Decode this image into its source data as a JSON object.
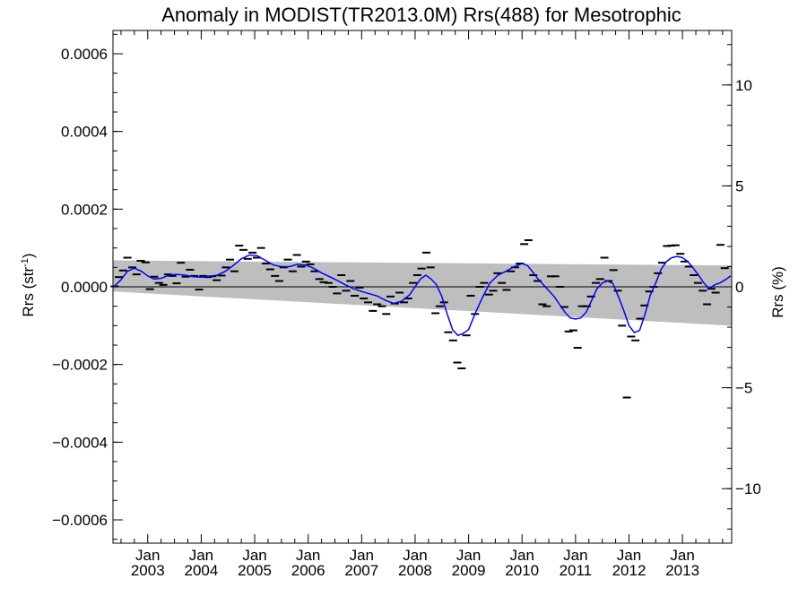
{
  "chart_data": {
    "type": "scatter",
    "title": "Anomaly in MODIST(TR2013.0M) Rrs(488) for Mesotrophic",
    "ylabel_left": "Rrs (str",
    "ylabel_left_sup": "-1",
    "ylabel_left_close": ")",
    "ylabel_right": "Rrs (%)",
    "ylim": [
      -0.00066,
      0.00066
    ],
    "ylim_right": [
      -12.7,
      12.7
    ],
    "xlim": [
      2002.35,
      2013.92
    ],
    "grid": false,
    "legend": "none",
    "y_ticks": [
      {
        "value": 0.0006,
        "label": "0.0006"
      },
      {
        "value": 0.0004,
        "label": "0.0004"
      },
      {
        "value": 0.0002,
        "label": "0.0002"
      },
      {
        "value": 0.0,
        "label": "0.0000"
      },
      {
        "value": -0.0002,
        "label": "−0.0002"
      },
      {
        "value": -0.0004,
        "label": "−0.0004"
      },
      {
        "value": -0.0006,
        "label": "−0.0006"
      }
    ],
    "y_ticks_right": [
      {
        "value": 10,
        "label": "10"
      },
      {
        "value": 5,
        "label": "5"
      },
      {
        "value": 0,
        "label": "0"
      },
      {
        "value": -5,
        "label": "−5"
      },
      {
        "value": -10,
        "label": "−10"
      }
    ],
    "x_ticks": [
      {
        "value": 2003.0,
        "label1": "Jan",
        "label2": "2003"
      },
      {
        "value": 2004.0,
        "label1": "Jan",
        "label2": "2004"
      },
      {
        "value": 2005.0,
        "label1": "Jan",
        "label2": "2005"
      },
      {
        "value": 2006.0,
        "label1": "Jan",
        "label2": "2006"
      },
      {
        "value": 2007.0,
        "label1": "Jan",
        "label2": "2007"
      },
      {
        "value": 2008.0,
        "label1": "Jan",
        "label2": "2008"
      },
      {
        "value": 2009.0,
        "label1": "Jan",
        "label2": "2009"
      },
      {
        "value": 2010.0,
        "label1": "Jan",
        "label2": "2010"
      },
      {
        "value": 2011.0,
        "label1": "Jan",
        "label2": "2011"
      },
      {
        "value": 2012.0,
        "label1": "Jan",
        "label2": "2012"
      },
      {
        "value": 2013.0,
        "label1": "Jan",
        "label2": "2013"
      }
    ],
    "band": {
      "x": [
        2002.35,
        2013.92
      ],
      "upper": [
        6.8e-05,
        5.5e-05
      ],
      "lower": [
        -1.2e-05,
        -0.0001
      ]
    },
    "points": [
      [
        2002.38,
        1e-06
      ],
      [
        2002.46,
        2.5e-05
      ],
      [
        2002.54,
        4.2e-05
      ],
      [
        2002.62,
        7.5e-05
      ],
      [
        2002.71,
        5e-05
      ],
      [
        2002.79,
        3.2e-05
      ],
      [
        2002.87,
        6.7e-05
      ],
      [
        2002.96,
        6.3e-05
      ],
      [
        2003.04,
        -6e-06
      ],
      [
        2003.12,
        2.6e-05
      ],
      [
        2003.21,
        1e-05
      ],
      [
        2003.29,
        5e-06
      ],
      [
        2003.38,
        3.2e-05
      ],
      [
        2003.46,
        2.8e-05
      ],
      [
        2003.54,
        9e-06
      ],
      [
        2003.62,
        6.2e-05
      ],
      [
        2003.71,
        2.6e-05
      ],
      [
        2003.79,
        4.4e-05
      ],
      [
        2003.87,
        2.8e-05
      ],
      [
        2003.96,
        -7e-06
      ],
      [
        2004.04,
        2.8e-05
      ],
      [
        2004.12,
        2.5e-05
      ],
      [
        2004.21,
        2.7e-05
      ],
      [
        2004.29,
        1.7e-05
      ],
      [
        2004.38,
        2.9e-05
      ],
      [
        2004.46,
        5e-05
      ],
      [
        2004.54,
        7e-05
      ],
      [
        2004.62,
        4e-05
      ],
      [
        2004.71,
        0.000106
      ],
      [
        2004.79,
        9.5e-05
      ],
      [
        2004.87,
        7.2e-05
      ],
      [
        2004.96,
        8.8e-05
      ],
      [
        2005.04,
        7.5e-05
      ],
      [
        2005.12,
        0.0001
      ],
      [
        2005.21,
        6e-05
      ],
      [
        2005.29,
        4.5e-05
      ],
      [
        2005.38,
        2.8e-05
      ],
      [
        2005.46,
        1.5e-05
      ],
      [
        2005.54,
        5e-05
      ],
      [
        2005.62,
        7e-05
      ],
      [
        2005.71,
        4e-05
      ],
      [
        2005.79,
        8.2e-05
      ],
      [
        2005.87,
        5.2e-05
      ],
      [
        2005.96,
        6.5e-05
      ],
      [
        2006.04,
        5.8e-05
      ],
      [
        2006.12,
        4e-05
      ],
      [
        2006.21,
        2e-05
      ],
      [
        2006.29,
        1.2e-05
      ],
      [
        2006.38,
        1e-05
      ],
      [
        2006.46,
        0.0
      ],
      [
        2006.54,
        -1.7e-05
      ],
      [
        2006.62,
        3e-05
      ],
      [
        2006.71,
        -1e-05
      ],
      [
        2006.79,
        1.5e-05
      ],
      [
        2006.87,
        -2.3e-05
      ],
      [
        2006.96,
        -2e-06
      ],
      [
        2007.04,
        -3e-05
      ],
      [
        2007.12,
        -4e-05
      ],
      [
        2007.21,
        -6.2e-05
      ],
      [
        2007.29,
        -4.5e-05
      ],
      [
        2007.38,
        -5e-05
      ],
      [
        2007.46,
        -7e-05
      ],
      [
        2007.54,
        -2.5e-05
      ],
      [
        2007.62,
        -4.3e-05
      ],
      [
        2007.71,
        -1.5e-05
      ],
      [
        2007.79,
        -4e-05
      ],
      [
        2007.87,
        -3e-05
      ],
      [
        2007.96,
        1e-05
      ],
      [
        2008.04,
        3e-05
      ],
      [
        2008.12,
        4.7e-05
      ],
      [
        2008.21,
        8.8e-05
      ],
      [
        2008.29,
        5e-05
      ],
      [
        2008.38,
        -6.8e-05
      ],
      [
        2008.46,
        -5e-05
      ],
      [
        2008.54,
        -4e-05
      ],
      [
        2008.62,
        -0.000117
      ],
      [
        2008.71,
        -0.000138
      ],
      [
        2008.79,
        -0.000195
      ],
      [
        2008.87,
        -0.00021
      ],
      [
        2008.96,
        -0.000125
      ],
      [
        2009.04,
        -2.3e-05
      ],
      [
        2009.12,
        -7e-05
      ],
      [
        2009.21,
        0.0
      ],
      [
        2009.29,
        1e-05
      ],
      [
        2009.38,
        -2e-05
      ],
      [
        2009.46,
        -1e-05
      ],
      [
        2009.54,
        3.5e-05
      ],
      [
        2009.62,
        1e-05
      ],
      [
        2009.71,
        -8e-06
      ],
      [
        2009.79,
        4e-05
      ],
      [
        2009.87,
        5e-05
      ],
      [
        2009.96,
        6e-05
      ],
      [
        2010.04,
        0.00011
      ],
      [
        2010.12,
        0.00012
      ],
      [
        2010.21,
        3e-05
      ],
      [
        2010.29,
        1.5e-05
      ],
      [
        2010.38,
        -4.5e-05
      ],
      [
        2010.46,
        -5e-05
      ],
      [
        2010.54,
        2.7e-05
      ],
      [
        2010.62,
        2.7e-05
      ],
      [
        2010.71,
        0.0
      ],
      [
        2010.79,
        -5.2e-05
      ],
      [
        2010.87,
        -0.000115
      ],
      [
        2010.96,
        -0.000112
      ],
      [
        2011.04,
        -0.000157
      ],
      [
        2011.12,
        -5e-05
      ],
      [
        2011.21,
        -5e-05
      ],
      [
        2011.29,
        -2.5e-05
      ],
      [
        2011.38,
        1e-05
      ],
      [
        2011.46,
        2e-05
      ],
      [
        2011.54,
        7.5e-05
      ],
      [
        2011.62,
        1.5e-05
      ],
      [
        2011.71,
        4.3e-05
      ],
      [
        2011.79,
        -1e-05
      ],
      [
        2011.87,
        -0.0001
      ],
      [
        2011.96,
        -0.000285
      ],
      [
        2012.04,
        -0.000128
      ],
      [
        2012.12,
        -0.000138
      ],
      [
        2012.21,
        -8.2e-05
      ],
      [
        2012.29,
        -4.8e-05
      ],
      [
        2012.38,
        -1.2e-05
      ],
      [
        2012.46,
        0.0
      ],
      [
        2012.54,
        3.5e-05
      ],
      [
        2012.62,
        6.2e-05
      ],
      [
        2012.71,
        0.000105
      ],
      [
        2012.79,
        0.000106
      ],
      [
        2012.87,
        0.000107
      ],
      [
        2012.96,
        8.5e-05
      ],
      [
        2013.04,
        6.5e-05
      ],
      [
        2013.12,
        5.2e-05
      ],
      [
        2013.21,
        3e-05
      ],
      [
        2013.29,
        1e-05
      ],
      [
        2013.38,
        -1e-05
      ],
      [
        2013.46,
        -4.5e-05
      ],
      [
        2013.54,
        -5e-06
      ],
      [
        2013.62,
        -1.5e-05
      ],
      [
        2013.71,
        0.000108
      ],
      [
        2013.79,
        4.8e-05
      ]
    ],
    "smooth": {
      "x": [
        2002.38,
        2002.5,
        2002.62,
        2002.75,
        2002.88,
        2003.0,
        2003.12,
        2003.25,
        2003.4,
        2003.55,
        2003.7,
        2003.85,
        2004.0,
        2004.15,
        2004.3,
        2004.45,
        2004.6,
        2004.75,
        2004.9,
        2005.05,
        2005.2,
        2005.35,
        2005.5,
        2005.65,
        2005.8,
        2005.95,
        2006.1,
        2006.25,
        2006.4,
        2006.55,
        2006.7,
        2006.85,
        2007.0,
        2007.15,
        2007.3,
        2007.45,
        2007.6,
        2007.75,
        2007.9,
        2008.0,
        2008.1,
        2008.2,
        2008.3,
        2008.4,
        2008.5,
        2008.6,
        2008.7,
        2008.8,
        2008.9,
        2009.0,
        2009.12,
        2009.25,
        2009.4,
        2009.55,
        2009.7,
        2009.85,
        2010.0,
        2010.1,
        2010.2,
        2010.3,
        2010.4,
        2010.5,
        2010.6,
        2010.7,
        2010.8,
        2010.9,
        2011.0,
        2011.1,
        2011.2,
        2011.3,
        2011.4,
        2011.5,
        2011.6,
        2011.7,
        2011.8,
        2011.9,
        2012.0,
        2012.1,
        2012.2,
        2012.3,
        2012.4,
        2012.5,
        2012.6,
        2012.7,
        2012.8,
        2012.9,
        2013.0,
        2013.1,
        2013.2,
        2013.3,
        2013.4,
        2013.5,
        2013.6,
        2013.7,
        2013.8,
        2013.9
      ],
      "y": [
        2e-06,
        1.8e-05,
        4e-05,
        4.8e-05,
        4e-05,
        2.8e-05,
        2e-05,
        2.2e-05,
        3e-05,
        3.2e-05,
        3e-05,
        2.6e-05,
        2.5e-05,
        2.7e-05,
        3e-05,
        4e-05,
        5.5e-05,
        7.2e-05,
        8.2e-05,
        8e-05,
        6.8e-05,
        5.6e-05,
        5.2e-05,
        5.2e-05,
        5.8e-05,
        5.6e-05,
        4.8e-05,
        3.6e-05,
        2.6e-05,
        1.6e-05,
        5e-06,
        -5e-06,
        -1.2e-05,
        -1.8e-05,
        -2.4e-05,
        -3.5e-05,
        -4.3e-05,
        -3.7e-05,
        -2e-05,
        0.0,
        2e-05,
        3e-05,
        2e-05,
        5e-06,
        -2.5e-05,
        -7e-05,
        -0.00011,
        -0.000125,
        -0.00012,
        -0.00011,
        -7e-05,
        -3e-05,
        1e-05,
        3e-05,
        4e-05,
        5.2e-05,
        6e-05,
        5.5e-05,
        3.8e-05,
        2e-05,
        5e-06,
        -1e-05,
        -2.5e-05,
        -4.5e-05,
        -6.5e-05,
        -8e-05,
        -8.3e-05,
        -8e-05,
        -6.5e-05,
        -3.5e-05,
        -5e-06,
        1e-05,
        1.5e-05,
        8e-06,
        -2.5e-05,
        -6e-05,
        -0.0001,
        -0.000118,
        -0.000112,
        -7e-05,
        -2e-05,
        1e-05,
        4.5e-05,
        6.5e-05,
        7.5e-05,
        7.8e-05,
        7.5e-05,
        6.5e-05,
        4.8e-05,
        3e-05,
        1e-05,
        -5e-06,
        5e-06,
        1e-05,
        1.8e-05,
        2.8e-05
      ]
    },
    "colors": {
      "band": "#bebebe",
      "smooth": "#0000ff",
      "points": "#000000",
      "zero_line": "#000000"
    }
  }
}
